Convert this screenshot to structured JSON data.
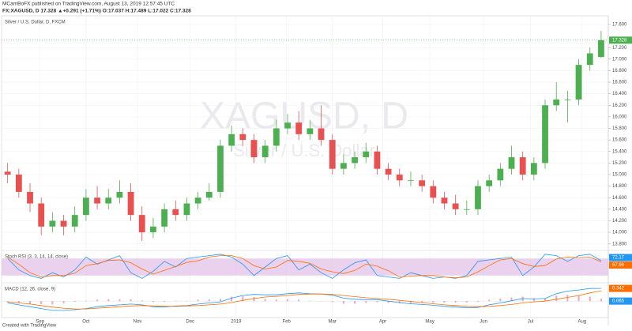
{
  "header": {
    "published": "MCamBoFX published on TradingView.com, August 13, 2019 12:57:45 UTC",
    "quote": "FX:XAGUSD, D 17.328 ▲+0.291 (+1.71%) O:17.037 H:17.489 L:17.022 C:17.328",
    "footer": "Created with TradingView"
  },
  "chart_data": {
    "type": "candlestick",
    "title": "Silver / U.S. Dollar, D, FXCM",
    "watermark": {
      "symbol": "XAGUSD, D",
      "name": "Silver / U.S. Dollar"
    },
    "x": [
      0,
      1,
      2,
      3,
      4,
      5,
      6,
      7,
      8,
      9,
      10,
      11,
      12,
      13,
      14,
      15,
      16,
      17,
      18,
      19,
      20,
      21,
      22,
      23,
      24,
      25,
      26,
      27,
      28,
      29,
      30,
      31,
      32,
      33,
      34,
      35,
      36,
      37,
      38,
      39,
      40,
      41,
      42,
      43,
      44,
      45,
      46,
      47,
      48,
      49,
      50,
      51,
      52,
      53
    ],
    "open": [
      15.05,
      15.0,
      14.7,
      14.5,
      14.1,
      14.2,
      14.1,
      14.3,
      14.6,
      14.5,
      14.6,
      14.7,
      14.3,
      14.0,
      14.1,
      14.4,
      14.3,
      14.5,
      14.6,
      14.7,
      15.5,
      15.7,
      15.6,
      15.3,
      15.5,
      15.8,
      15.9,
      15.7,
      15.8,
      15.6,
      15.1,
      15.2,
      15.3,
      15.4,
      15.1,
      15.0,
      14.9,
      14.9,
      14.8,
      14.6,
      14.5,
      14.4,
      14.4,
      14.8,
      14.9,
      15.1,
      15.3,
      15.0,
      15.2,
      16.2,
      16.3,
      16.3,
      16.9,
      17.037
    ],
    "high": [
      15.2,
      15.1,
      14.85,
      14.6,
      14.35,
      14.3,
      14.45,
      14.75,
      14.8,
      14.75,
      14.9,
      14.85,
      14.45,
      14.25,
      14.5,
      14.55,
      14.6,
      14.7,
      14.85,
      15.6,
      15.85,
      15.8,
      15.7,
      15.6,
      15.95,
      16.05,
      16.1,
      15.95,
      16.2,
      15.7,
      15.35,
      15.4,
      15.55,
      15.5,
      15.2,
      15.1,
      15.05,
      15.0,
      14.9,
      14.7,
      14.65,
      14.55,
      14.9,
      15.0,
      15.2,
      15.5,
      15.4,
      15.3,
      16.3,
      16.6,
      16.45,
      17.0,
      17.2,
      17.489
    ],
    "low": [
      14.85,
      14.6,
      14.35,
      13.95,
      14.0,
      13.95,
      14.0,
      14.2,
      14.4,
      14.4,
      14.5,
      14.2,
      13.85,
      13.9,
      14.0,
      14.2,
      14.2,
      14.4,
      14.55,
      14.6,
      15.4,
      15.5,
      15.2,
      15.2,
      15.4,
      15.7,
      15.6,
      15.6,
      15.5,
      15.0,
      15.0,
      15.1,
      15.2,
      15.0,
      14.9,
      14.8,
      14.8,
      14.7,
      14.5,
      14.4,
      14.3,
      14.3,
      14.3,
      14.7,
      14.8,
      15.0,
      14.9,
      14.9,
      15.1,
      16.1,
      15.9,
      16.2,
      16.8,
      17.022
    ],
    "close": [
      15.0,
      14.7,
      14.5,
      14.1,
      14.2,
      14.1,
      14.3,
      14.6,
      14.5,
      14.6,
      14.7,
      14.3,
      14.0,
      14.1,
      14.4,
      14.3,
      14.5,
      14.6,
      14.7,
      15.5,
      15.7,
      15.6,
      15.3,
      15.5,
      15.8,
      15.9,
      15.7,
      15.8,
      15.6,
      15.1,
      15.2,
      15.3,
      15.4,
      15.1,
      15.0,
      14.9,
      14.9,
      14.8,
      14.6,
      14.5,
      14.4,
      14.4,
      14.8,
      14.9,
      15.1,
      15.3,
      15.0,
      15.2,
      16.2,
      16.3,
      16.3,
      16.9,
      17.1,
      17.328
    ],
    "up_color": "#4caf50",
    "down_color": "#e8514f",
    "last_price": 17.328,
    "xlim": [
      -0.4,
      53.5
    ],
    "xticks": [
      {
        "value": 2.9,
        "label": "Sep"
      },
      {
        "value": 7.0,
        "label": "Oct"
      },
      {
        "value": 11.6,
        "label": "Nov"
      },
      {
        "value": 16.3,
        "label": "Dec"
      },
      {
        "value": 20.4,
        "label": "2019"
      },
      {
        "value": 24.9,
        "label": "Feb"
      },
      {
        "value": 29.0,
        "label": "Mar"
      },
      {
        "value": 33.5,
        "label": "Apr"
      },
      {
        "value": 37.7,
        "label": "May"
      },
      {
        "value": 42.5,
        "label": "Jun"
      },
      {
        "value": 46.7,
        "label": "Jul"
      },
      {
        "value": 51.3,
        "label": "Aug"
      }
    ],
    "ylim": [
      13.7,
      17.75
    ],
    "yticks": [
      {
        "value": 13.8,
        "label": "13.800"
      },
      {
        "value": 14.0,
        "label": "14.000"
      },
      {
        "value": 14.2,
        "label": "14.200"
      },
      {
        "value": 14.4,
        "label": "14.400"
      },
      {
        "value": 14.6,
        "label": "14.600"
      },
      {
        "value": 14.8,
        "label": "14.800"
      },
      {
        "value": 15.0,
        "label": "15.000"
      },
      {
        "value": 15.2,
        "label": "15.200"
      },
      {
        "value": 15.4,
        "label": "15.400"
      },
      {
        "value": 15.6,
        "label": "15.600"
      },
      {
        "value": 15.8,
        "label": "15.800"
      },
      {
        "value": 16.0,
        "label": "16.000"
      },
      {
        "value": 16.2,
        "label": "16.200"
      },
      {
        "value": 16.4,
        "label": "16.400"
      },
      {
        "value": 16.6,
        "label": "16.600"
      },
      {
        "value": 16.8,
        "label": "16.800"
      },
      {
        "value": 17.0,
        "label": "17.000"
      },
      {
        "value": 17.2,
        "label": "17.200"
      },
      {
        "value": 17.6,
        "label": "17.600"
      }
    ],
    "grid": true,
    "stoch": {
      "title": "Stoch RSI (3, 3, 14, 14, close)",
      "ylim": [
        0,
        100
      ],
      "band": [
        20,
        80
      ],
      "band_color": "#e1bee7",
      "series": [
        {
          "color": "#2196f3",
          "values": [
            80,
            40,
            20,
            10,
            30,
            15,
            40,
            85,
            60,
            75,
            90,
            30,
            10,
            35,
            70,
            50,
            80,
            85,
            90,
            95,
            85,
            60,
            20,
            50,
            80,
            90,
            40,
            60,
            30,
            10,
            40,
            65,
            75,
            20,
            15,
            10,
            30,
            20,
            10,
            15,
            10,
            20,
            70,
            75,
            80,
            85,
            20,
            50,
            95,
            90,
            70,
            90,
            95,
            72.17
          ]
        },
        {
          "color": "#ff6d00",
          "values": [
            85,
            60,
            30,
            15,
            20,
            20,
            28,
            55,
            62,
            73,
            75,
            65,
            43,
            25,
            38,
            52,
            66,
            72,
            85,
            90,
            90,
            80,
            55,
            43,
            50,
            73,
            70,
            63,
            43,
            33,
            27,
            38,
            60,
            53,
            37,
            15,
            18,
            20,
            20,
            15,
            12,
            15,
            33,
            55,
            75,
            80,
            62,
            52,
            55,
            78,
            85,
            83,
            85,
            67.98
          ]
        }
      ]
    },
    "macd": {
      "title": "MACD (12, 26, close, 9)",
      "ylim": [
        -0.4,
        0.45
      ],
      "yticks": [
        {
          "value": 0,
          "label": "0.00"
        }
      ],
      "series": [
        {
          "color": "#2196f3",
          "values": [
            -0.05,
            -0.1,
            -0.15,
            -0.2,
            -0.25,
            -0.25,
            -0.23,
            -0.2,
            -0.15,
            -0.12,
            -0.1,
            -0.08,
            -0.1,
            -0.15,
            -0.16,
            -0.13,
            -0.12,
            -0.08,
            -0.05,
            -0.02,
            0.08,
            0.15,
            0.18,
            0.17,
            0.17,
            0.2,
            0.22,
            0.2,
            0.19,
            0.16,
            0.08,
            0.05,
            0.04,
            0.04,
            0.0,
            -0.04,
            -0.07,
            -0.09,
            -0.11,
            -0.14,
            -0.16,
            -0.18,
            -0.17,
            -0.1,
            -0.05,
            0.01,
            0.07,
            0.06,
            0.07,
            0.2,
            0.27,
            0.3,
            0.34,
            0.342
          ]
        },
        {
          "color": "#ff6d00",
          "values": [
            -0.02,
            -0.05,
            -0.08,
            -0.12,
            -0.16,
            -0.19,
            -0.21,
            -0.21,
            -0.19,
            -0.17,
            -0.15,
            -0.13,
            -0.12,
            -0.13,
            -0.14,
            -0.14,
            -0.13,
            -0.12,
            -0.1,
            -0.08,
            -0.04,
            0.02,
            0.07,
            0.11,
            0.13,
            0.15,
            0.18,
            0.19,
            0.19,
            0.18,
            0.15,
            0.12,
            0.09,
            0.07,
            0.05,
            0.02,
            -0.01,
            -0.04,
            -0.07,
            -0.1,
            -0.12,
            -0.14,
            -0.15,
            -0.14,
            -0.12,
            -0.09,
            -0.05,
            -0.02,
            0.0,
            0.05,
            0.1,
            0.15,
            0.22,
            0.277
          ]
        }
      ],
      "histogram": {
        "color": "#f06292",
        "values": [
          -0.03,
          -0.05,
          -0.07,
          -0.08,
          -0.09,
          -0.06,
          -0.02,
          0.01,
          0.04,
          0.05,
          0.05,
          0.05,
          0.02,
          -0.02,
          -0.02,
          0.01,
          0.01,
          0.04,
          0.05,
          0.06,
          0.12,
          0.13,
          0.11,
          0.06,
          0.04,
          0.05,
          0.04,
          0.01,
          0.0,
          -0.02,
          -0.07,
          -0.07,
          -0.05,
          -0.03,
          -0.05,
          -0.06,
          -0.06,
          -0.05,
          -0.04,
          -0.04,
          -0.04,
          -0.04,
          -0.02,
          0.04,
          0.07,
          0.1,
          0.12,
          0.08,
          0.07,
          0.15,
          0.17,
          0.15,
          0.12,
          0.065
        ]
      }
    }
  }
}
